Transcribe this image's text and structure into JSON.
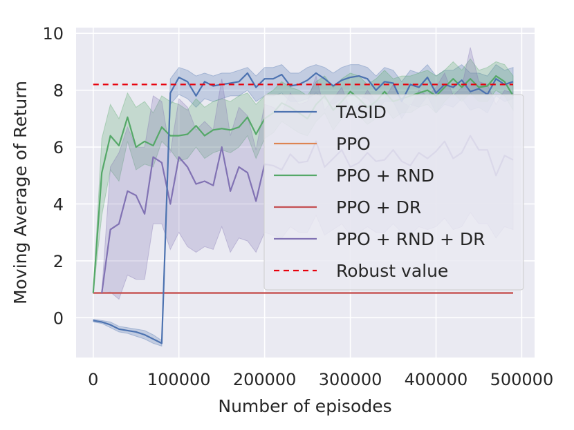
{
  "chart_data": {
    "type": "line",
    "title": "",
    "xlabel": "Number of episodes",
    "ylabel": "Moving Average of Return",
    "xlim": [
      -20000,
      515000
    ],
    "ylim": [
      -1.4,
      10.2
    ],
    "xticks": [
      0,
      100000,
      200000,
      300000,
      400000,
      500000
    ],
    "xtick_labels": [
      "0",
      "100000",
      "200000",
      "300000",
      "400000",
      "500000"
    ],
    "yticks": [
      0,
      2,
      4,
      6,
      8,
      10
    ],
    "ytick_labels": [
      "0",
      "2",
      "4",
      "6",
      "8",
      "10"
    ],
    "grid": true,
    "legend_position": "center-right",
    "series": [
      {
        "name": "TASID",
        "color": "#4c72b0",
        "dash": "",
        "x": [
          0,
          10000,
          20000,
          30000,
          40000,
          50000,
          60000,
          70000,
          80000,
          90000,
          100000,
          110000,
          120000,
          130000,
          140000,
          150000,
          160000,
          170000,
          180000,
          190000,
          200000,
          210000,
          220000,
          230000,
          240000,
          250000,
          260000,
          270000,
          280000,
          290000,
          300000,
          310000,
          320000,
          330000,
          340000,
          350000,
          360000,
          370000,
          380000,
          390000,
          400000,
          410000,
          420000,
          430000,
          440000,
          450000,
          460000,
          470000,
          480000,
          490000
        ],
        "y": [
          -0.1,
          -0.15,
          -0.25,
          -0.4,
          -0.45,
          -0.5,
          -0.6,
          -0.75,
          -0.9,
          7.9,
          8.45,
          8.3,
          7.8,
          8.3,
          8.15,
          8.2,
          8.25,
          8.3,
          8.6,
          8.1,
          8.4,
          8.4,
          8.55,
          8.15,
          8.2,
          8.35,
          8.6,
          8.4,
          8.15,
          8.35,
          8.45,
          8.5,
          8.4,
          8.0,
          8.3,
          8.25,
          7.6,
          8.2,
          8.1,
          8.45,
          7.9,
          8.2,
          8.1,
          8.35,
          7.95,
          8.05,
          7.85,
          8.4,
          8.2,
          8.3
        ],
        "lower": [
          -0.15,
          -0.2,
          -0.35,
          -0.5,
          -0.55,
          -0.65,
          -0.75,
          -0.9,
          -1.0,
          7.5,
          7.85,
          7.7,
          7.4,
          7.7,
          7.6,
          7.7,
          7.8,
          7.8,
          8.0,
          7.6,
          7.8,
          7.8,
          7.9,
          7.6,
          7.6,
          7.7,
          7.9,
          7.7,
          7.5,
          7.7,
          7.8,
          7.8,
          7.7,
          7.3,
          7.6,
          7.6,
          7.0,
          7.5,
          7.4,
          7.8,
          7.2,
          7.5,
          7.4,
          7.7,
          7.3,
          7.4,
          7.2,
          7.8,
          7.6,
          7.7
        ],
        "upper": [
          -0.05,
          -0.1,
          -0.15,
          -0.3,
          -0.35,
          -0.4,
          -0.45,
          -0.6,
          -0.8,
          8.4,
          8.8,
          8.7,
          8.5,
          8.6,
          8.5,
          8.6,
          8.6,
          8.7,
          8.8,
          8.5,
          8.8,
          8.8,
          8.9,
          8.6,
          8.6,
          8.8,
          8.9,
          8.8,
          8.6,
          8.8,
          8.9,
          8.9,
          8.8,
          8.5,
          8.8,
          8.7,
          8.3,
          8.7,
          8.6,
          8.9,
          8.5,
          8.7,
          8.7,
          8.9,
          8.6,
          8.6,
          8.5,
          8.9,
          8.7,
          8.8
        ]
      },
      {
        "name": "PPO",
        "color": "#dd8452",
        "dash": "",
        "x": [
          0,
          490000
        ],
        "y": [
          0.87,
          0.87
        ]
      },
      {
        "name": "PPO + RND",
        "color": "#55a868",
        "dash": "",
        "x": [
          0,
          10000,
          20000,
          30000,
          40000,
          50000,
          60000,
          70000,
          80000,
          90000,
          100000,
          110000,
          120000,
          130000,
          140000,
          150000,
          160000,
          170000,
          180000,
          190000,
          200000,
          210000,
          220000,
          230000,
          240000,
          250000,
          260000,
          270000,
          280000,
          290000,
          300000,
          310000,
          320000,
          330000,
          340000,
          350000,
          360000,
          370000,
          380000,
          390000,
          400000,
          410000,
          420000,
          430000,
          440000,
          450000,
          460000,
          470000,
          480000,
          490000
        ],
        "y": [
          0.87,
          5.1,
          6.4,
          6.05,
          7.05,
          6.0,
          6.2,
          6.05,
          6.7,
          6.4,
          6.4,
          6.45,
          6.75,
          6.4,
          6.6,
          6.65,
          6.6,
          6.7,
          7.05,
          6.45,
          7.0,
          7.2,
          7.55,
          7.4,
          7.2,
          7.0,
          7.5,
          7.8,
          7.3,
          7.6,
          7.95,
          7.7,
          7.4,
          7.6,
          7.95,
          7.6,
          7.7,
          7.8,
          7.9,
          8.0,
          7.8,
          8.1,
          8.4,
          8.1,
          8.4,
          8.1,
          8.15,
          8.5,
          8.3,
          7.8
        ],
        "lower": [
          0.85,
          3.6,
          5.2,
          4.8,
          6.2,
          5.2,
          5.4,
          5.3,
          6.2,
          5.9,
          5.5,
          5.6,
          6.0,
          5.6,
          5.8,
          5.9,
          5.8,
          6.0,
          6.4,
          5.6,
          6.3,
          6.5,
          6.9,
          6.7,
          6.5,
          6.4,
          6.9,
          7.2,
          6.6,
          7.0,
          7.4,
          7.1,
          6.8,
          7.0,
          7.4,
          7.0,
          7.2,
          7.2,
          7.4,
          7.5,
          7.2,
          7.6,
          7.9,
          7.6,
          7.9,
          7.6,
          7.6,
          8.0,
          7.8,
          7.3
        ],
        "upper": [
          0.9,
          6.3,
          7.5,
          7.0,
          7.9,
          7.4,
          7.6,
          7.2,
          7.8,
          7.6,
          7.5,
          7.3,
          7.7,
          7.4,
          7.6,
          7.7,
          7.6,
          7.8,
          7.9,
          7.5,
          7.8,
          8.0,
          8.3,
          8.1,
          8.0,
          7.8,
          8.3,
          8.5,
          8.1,
          8.4,
          8.6,
          8.5,
          8.2,
          8.4,
          8.7,
          8.4,
          8.5,
          8.5,
          8.6,
          8.7,
          8.5,
          8.7,
          9.0,
          8.7,
          9.1,
          8.7,
          8.8,
          9.0,
          8.9,
          8.5
        ]
      },
      {
        "name": "PPO + DR",
        "color": "#c44e52",
        "dash": "",
        "x": [
          0,
          490000
        ],
        "y": [
          0.87,
          0.87
        ]
      },
      {
        "name": "PPO + RND + DR",
        "color": "#8172b3",
        "dash": "",
        "x": [
          10000,
          20000,
          30000,
          40000,
          50000,
          60000,
          70000,
          80000,
          90000,
          100000,
          110000,
          120000,
          130000,
          140000,
          150000,
          160000,
          170000,
          180000,
          190000,
          200000,
          210000,
          220000,
          230000,
          240000,
          250000,
          260000,
          270000,
          280000,
          290000,
          300000,
          310000,
          320000,
          330000,
          340000,
          350000,
          360000,
          370000,
          380000,
          390000,
          400000,
          410000,
          420000,
          430000,
          440000,
          450000,
          460000,
          470000,
          480000,
          490000
        ],
        "y": [
          0.87,
          3.1,
          3.3,
          4.45,
          4.3,
          3.65,
          5.65,
          5.45,
          4.0,
          5.65,
          5.3,
          4.7,
          4.8,
          4.65,
          6.0,
          4.45,
          5.3,
          5.1,
          4.1,
          5.4,
          5.35,
          5.2,
          5.75,
          5.45,
          5.5,
          6.2,
          5.3,
          5.6,
          5.9,
          5.3,
          5.45,
          5.8,
          5.5,
          5.55,
          5.9,
          5.5,
          5.35,
          5.8,
          5.6,
          5.85,
          6.2,
          5.6,
          5.8,
          6.4,
          5.9,
          5.9,
          5.0,
          5.7,
          5.55
        ],
        "lower": [
          0.85,
          0.9,
          0.65,
          1.5,
          1.35,
          1.35,
          3.3,
          3.3,
          2.4,
          3.0,
          2.5,
          2.3,
          2.5,
          2.4,
          3.2,
          2.3,
          2.8,
          2.7,
          2.3,
          3.0,
          2.9,
          2.8,
          3.2,
          3.0,
          3.0,
          3.6,
          2.9,
          3.1,
          3.3,
          2.9,
          3.0,
          3.2,
          3.0,
          3.0,
          3.3,
          3.0,
          2.9,
          3.2,
          3.1,
          3.2,
          3.5,
          3.1,
          3.2,
          3.7,
          3.3,
          3.3,
          2.8,
          3.2,
          3.1
        ],
        "upper": [
          0.9,
          5.3,
          5.8,
          6.7,
          6.0,
          6.0,
          7.8,
          7.6,
          5.8,
          7.7,
          7.4,
          6.6,
          6.9,
          6.6,
          8.4,
          6.4,
          7.4,
          7.1,
          5.9,
          7.5,
          7.4,
          7.2,
          7.9,
          7.5,
          7.6,
          8.5,
          7.3,
          7.7,
          8.1,
          7.3,
          7.5,
          8.0,
          7.6,
          7.7,
          8.2,
          7.6,
          7.4,
          8.0,
          7.8,
          8.1,
          8.6,
          7.8,
          8.1,
          9.5,
          8.3,
          8.2,
          7.5,
          8.0,
          7.9
        ]
      },
      {
        "name": "Robust value",
        "color": "#e8000b",
        "dash": "8 6",
        "x": [
          0,
          490000
        ],
        "y": [
          8.2,
          8.2
        ]
      }
    ]
  }
}
